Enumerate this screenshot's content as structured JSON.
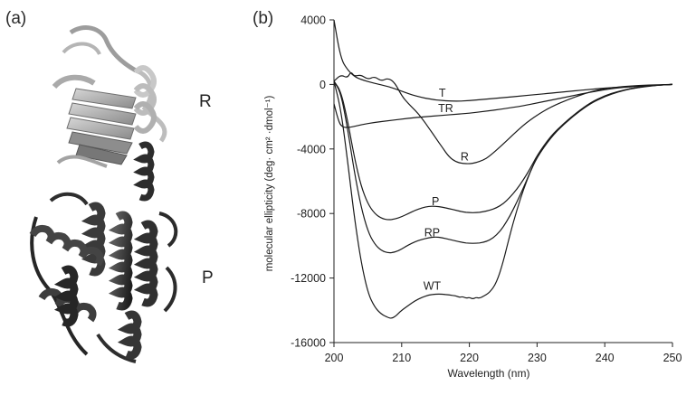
{
  "panels": {
    "a": {
      "label": "(a)"
    },
    "b": {
      "label": "(b)"
    }
  },
  "structure": {
    "domain_r": "R",
    "domain_p": "P"
  },
  "chart_data": {
    "type": "line",
    "title": "",
    "xlabel": "Wavelength (nm)",
    "ylabel": "molecular ellipticity (deg· cm² ·dmol⁻¹)",
    "xlim": [
      200,
      250
    ],
    "ylim": [
      -16000,
      4000
    ],
    "xticks": [
      200,
      210,
      220,
      230,
      240,
      250
    ],
    "yticks": [
      4000,
      0,
      -4000,
      -8000,
      -12000,
      -16000
    ],
    "ytick_labels": [
      "4000",
      "0",
      "-4000",
      "-8000",
      "-12000",
      "-16000"
    ],
    "grid": false,
    "series": [
      {
        "name": "T",
        "label_at": [
          216.0,
          -550
        ],
        "x": [
          200,
          201,
          202,
          203,
          204,
          206,
          208,
          210,
          212,
          215,
          218,
          220,
          222,
          225,
          228,
          230,
          232,
          235,
          238,
          240,
          242,
          245,
          248,
          250
        ],
        "y": [
          4000,
          1600,
          900,
          500,
          300,
          60,
          -120,
          -420,
          -720,
          -980,
          -1050,
          -1000,
          -930,
          -820,
          -700,
          -620,
          -540,
          -420,
          -300,
          -230,
          -170,
          -100,
          -40,
          0
        ]
      },
      {
        "name": "TR",
        "label_at": [
          216.5,
          -1500
        ],
        "x": [
          200,
          200.5,
          201,
          202,
          204,
          206,
          208,
          210,
          212,
          215,
          218,
          220,
          222,
          225,
          228,
          230,
          232,
          235,
          238,
          240,
          242,
          245,
          248,
          250
        ],
        "y": [
          -1200,
          -2000,
          -2600,
          -2700,
          -2500,
          -2350,
          -2250,
          -2150,
          -2050,
          -1950,
          -1850,
          -1780,
          -1680,
          -1520,
          -1320,
          -1150,
          -980,
          -720,
          -470,
          -330,
          -210,
          -110,
          -40,
          0
        ]
      },
      {
        "name": "R",
        "label_at": [
          219.3,
          -4500
        ],
        "x": [
          200,
          201,
          202,
          202.5,
          203,
          204,
          205,
          206,
          207,
          208,
          209,
          210,
          211,
          212,
          213,
          214,
          215,
          216,
          217,
          218,
          219,
          220,
          221,
          222,
          223,
          225,
          228,
          230,
          232,
          235,
          238,
          240,
          242,
          245,
          248,
          250
        ],
        "y": [
          200,
          600,
          400,
          800,
          500,
          600,
          300,
          500,
          200,
          400,
          100,
          -700,
          -1200,
          -1600,
          -2100,
          -2700,
          -3300,
          -3900,
          -4500,
          -4800,
          -4900,
          -4920,
          -4850,
          -4700,
          -4450,
          -3700,
          -2500,
          -1900,
          -1400,
          -860,
          -440,
          -260,
          -150,
          -60,
          -20,
          0
        ]
      },
      {
        "name": "P",
        "label_at": [
          215.0,
          -7250
        ],
        "x": [
          200,
          201,
          202,
          203,
          204,
          205,
          206,
          207,
          208,
          209,
          210,
          211,
          212,
          213,
          214,
          215,
          216,
          217,
          218,
          219,
          220,
          221,
          222,
          223,
          224,
          225,
          226,
          227,
          228,
          229,
          230,
          232,
          234,
          236,
          238,
          240,
          242,
          244,
          246,
          248,
          250
        ],
        "y": [
          200,
          -400,
          -2200,
          -4500,
          -6300,
          -7400,
          -8000,
          -8300,
          -8400,
          -8350,
          -8200,
          -8000,
          -7800,
          -7650,
          -7550,
          -7550,
          -7600,
          -7700,
          -7800,
          -7900,
          -7950,
          -7950,
          -7900,
          -7800,
          -7650,
          -7400,
          -7000,
          -6500,
          -5900,
          -5200,
          -4400,
          -3200,
          -2400,
          -1700,
          -1100,
          -700,
          -430,
          -240,
          -120,
          -40,
          0
        ]
      },
      {
        "name": "RP",
        "label_at": [
          214.5,
          -9200
        ],
        "x": [
          200,
          201,
          202,
          203,
          204,
          205,
          206,
          207,
          208,
          209,
          210,
          211,
          212,
          213,
          214,
          215,
          216,
          217,
          218,
          219,
          220,
          221,
          222,
          223,
          224,
          225,
          226,
          227,
          228,
          229,
          230,
          232,
          234,
          236,
          238,
          240,
          242,
          244,
          246,
          248,
          250
        ],
        "y": [
          200,
          -500,
          -2700,
          -5400,
          -7600,
          -9100,
          -9900,
          -10300,
          -10450,
          -10400,
          -10200,
          -9950,
          -9750,
          -9600,
          -9500,
          -9450,
          -9500,
          -9600,
          -9700,
          -9800,
          -9850,
          -9850,
          -9800,
          -9650,
          -9350,
          -8850,
          -8150,
          -7300,
          -6400,
          -5400,
          -4500,
          -3300,
          -2450,
          -1750,
          -1150,
          -750,
          -460,
          -260,
          -130,
          -45,
          0
        ]
      },
      {
        "name": "WT",
        "label_at": [
          214.5,
          -12500
        ],
        "x": [
          200,
          201,
          202,
          203,
          204,
          205,
          206,
          207,
          208,
          208.5,
          209,
          209.5,
          210,
          211,
          212,
          213,
          214,
          215,
          216,
          217,
          218,
          218.5,
          219,
          219.5,
          220,
          220.5,
          221,
          221.5,
          222,
          223,
          224,
          225,
          226,
          227,
          228,
          229,
          230,
          232,
          234,
          236,
          238,
          240,
          242,
          244,
          246,
          248,
          250
        ],
        "y": [
          200,
          -1500,
          -4700,
          -8200,
          -11000,
          -12900,
          -13800,
          -14250,
          -14450,
          -14500,
          -14400,
          -14200,
          -14000,
          -13700,
          -13400,
          -13200,
          -13050,
          -13000,
          -13000,
          -13050,
          -13100,
          -13200,
          -13150,
          -13250,
          -13200,
          -13300,
          -13200,
          -13250,
          -13150,
          -12900,
          -12300,
          -11000,
          -9300,
          -7800,
          -6500,
          -5400,
          -4500,
          -3300,
          -2400,
          -1700,
          -1100,
          -700,
          -430,
          -240,
          -120,
          -40,
          0
        ]
      }
    ]
  }
}
